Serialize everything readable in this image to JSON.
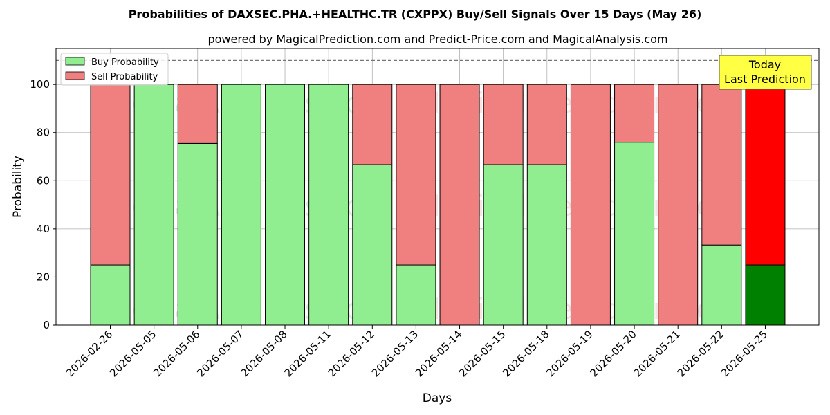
{
  "chart_data": {
    "type": "bar",
    "stacked": true,
    "title": "Probabilities of DAXSEC.PHA.+HEALTHC.TR (CXPPX) Buy/Sell Signals Over 15 Days (May 26)",
    "subtitle": "powered by MagicalPrediction.com and Predict-Price.com and MagicalAnalysis.com",
    "xlabel": "Days",
    "ylabel": "Probability",
    "ylim": [
      0,
      115
    ],
    "yticks": [
      0,
      20,
      40,
      60,
      80,
      100
    ],
    "grid": true,
    "legend_placement": "top-left",
    "reference_line": 110,
    "categories": [
      "2026-02-26",
      "2026-05-05",
      "2026-05-06",
      "2026-05-07",
      "2026-05-08",
      "2026-05-11",
      "2026-05-12",
      "2026-05-13",
      "2026-05-14",
      "2026-05-15",
      "2026-05-18",
      "2026-05-19",
      "2026-05-20",
      "2026-05-21",
      "2026-05-22",
      "2026-05-25"
    ],
    "series": [
      {
        "name": "Buy Probability",
        "color": "#90ee90",
        "values": [
          25,
          100,
          75.5,
          100,
          100,
          100,
          66.7,
          25,
          0,
          66.7,
          66.7,
          0,
          76,
          0,
          33.3,
          25
        ]
      },
      {
        "name": "Sell Probability",
        "color": "#f08080",
        "values": [
          75,
          0,
          24.5,
          0,
          0,
          0,
          33.3,
          75,
          100,
          33.3,
          33.3,
          100,
          24,
          100,
          66.7,
          75
        ]
      }
    ],
    "highlight": {
      "index": 15,
      "buy_color": "#008000",
      "sell_color": "#ff0000"
    },
    "annotation": {
      "text_line1": "Today",
      "text_line2": "Last Prediction",
      "bg": "#ffff44"
    },
    "watermarks": [
      "MagicalAnalysis.com",
      "MagicalPrediction.com"
    ]
  }
}
